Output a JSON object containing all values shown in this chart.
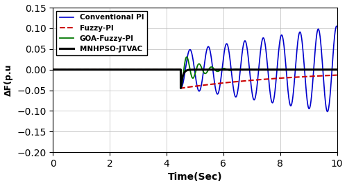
{
  "title": "",
  "xlabel": "Time(Sec)",
  "ylabel": "ΔF(p.u",
  "xlim": [
    0,
    10
  ],
  "ylim": [
    -0.2,
    0.15
  ],
  "yticks": [
    -0.2,
    -0.15,
    -0.1,
    -0.05,
    0,
    0.05,
    0.1,
    0.15
  ],
  "xticks": [
    0,
    2,
    4,
    6,
    8,
    10
  ],
  "step_time": 4.5,
  "colors": {
    "conventional_pi": "#0000cc",
    "fuzzy_pi": "#cc0000",
    "goa_fuzzy_pi": "#007700",
    "mnhpso": "#000000"
  },
  "legend_labels": [
    "Conventional PI",
    "Fuzzy-PI",
    "GOA-Fuzzy-PI",
    "MNHPSO-JTVAC"
  ],
  "background_color": "#ffffff",
  "grid_color": "#bbbbbb"
}
